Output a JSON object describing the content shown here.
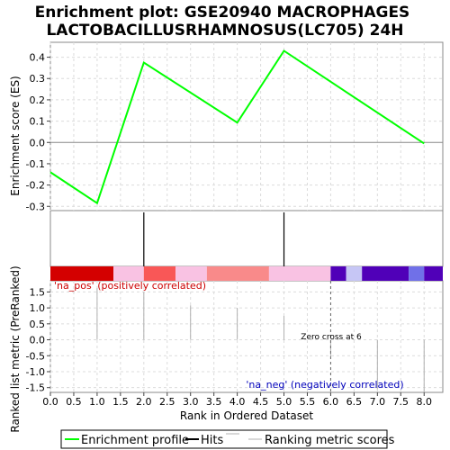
{
  "chart_data": {
    "type": "line",
    "title_line1": "Enrichment plot: GSE20940 MACROPHAGES",
    "title_line2": "LACTOBACILLUSRHAMNOSUS(LC705) 24H",
    "xlabel": "Rank in Ordered Dataset",
    "ylabel_top": "Enrichment score (ES)",
    "ylabel_bottom": "Ranked list metric (PreRanked)",
    "xlim": [
      0,
      8.4
    ],
    "ylim_top": [
      -0.32,
      0.47
    ],
    "ylim_bottom": [
      -1.65,
      1.85
    ],
    "x_ticks": [
      "0.0",
      "0.5",
      "1.0",
      "1.5",
      "2.0",
      "2.5",
      "3.0",
      "3.5",
      "4.0",
      "4.5",
      "5.0",
      "5.5",
      "6.0",
      "6.5",
      "7.0",
      "7.5",
      "8.0"
    ],
    "y_ticks_top": [
      "0.4",
      "0.3",
      "0.2",
      "0.1",
      "0.0",
      "-0.1",
      "-0.2",
      "-0.3"
    ],
    "y_ticks_bottom": [
      "1.5",
      "1.0",
      "0.5",
      "0.0",
      "-0.5",
      "-1.0",
      "-1.5"
    ],
    "series": [
      {
        "name": "Enrichment profile",
        "color": "#00ff00",
        "x": [
          0,
          1,
          2,
          4,
          5,
          8
        ],
        "values": [
          -0.14,
          -0.285,
          0.375,
          0.093,
          0.43,
          -0.005
        ]
      }
    ],
    "hits": [
      2,
      5
    ],
    "ranking_metric": {
      "x": [
        1,
        2,
        3,
        4,
        5,
        6,
        7,
        8
      ],
      "values": [
        1.62,
        1.5,
        1.08,
        1.0,
        0.75,
        -0.55,
        -1.55,
        -1.65
      ]
    },
    "zero_cross_x": 6,
    "annotations": {
      "pos": "'na_pos' (positively correlated)",
      "neg": "'na_neg' (negatively correlated)",
      "zero_cross": "Zero cross at 6"
    },
    "heat_bar": [
      {
        "x0": 0.0,
        "x1": 1.35,
        "color": "#d40000"
      },
      {
        "x0": 1.35,
        "x1": 2.0,
        "color": "#f9c2e3"
      },
      {
        "x0": 2.0,
        "x1": 2.68,
        "color": "#f95757"
      },
      {
        "x0": 2.68,
        "x1": 3.35,
        "color": "#f9c2e3"
      },
      {
        "x0": 3.35,
        "x1": 4.68,
        "color": "#f98a8a"
      },
      {
        "x0": 4.68,
        "x1": 6.0,
        "color": "#f9c2e3"
      },
      {
        "x0": 6.0,
        "x1": 6.33,
        "color": "#5000b8"
      },
      {
        "x0": 6.33,
        "x1": 6.67,
        "color": "#c6c6f5"
      },
      {
        "x0": 6.67,
        "x1": 7.67,
        "color": "#5000b8"
      },
      {
        "x0": 7.67,
        "x1": 8.0,
        "color": "#7070e8"
      },
      {
        "x0": 8.0,
        "x1": 8.4,
        "color": "#5000b8"
      }
    ],
    "legend": {
      "placement": "bottom",
      "items": [
        "Enrichment profile",
        "Hits",
        "Ranking metric scores"
      ]
    },
    "colors": {
      "profile": "#00ff00",
      "pos_text": "#cc0000",
      "neg_text": "#0000bb",
      "metric": "#b0b0b0"
    }
  }
}
